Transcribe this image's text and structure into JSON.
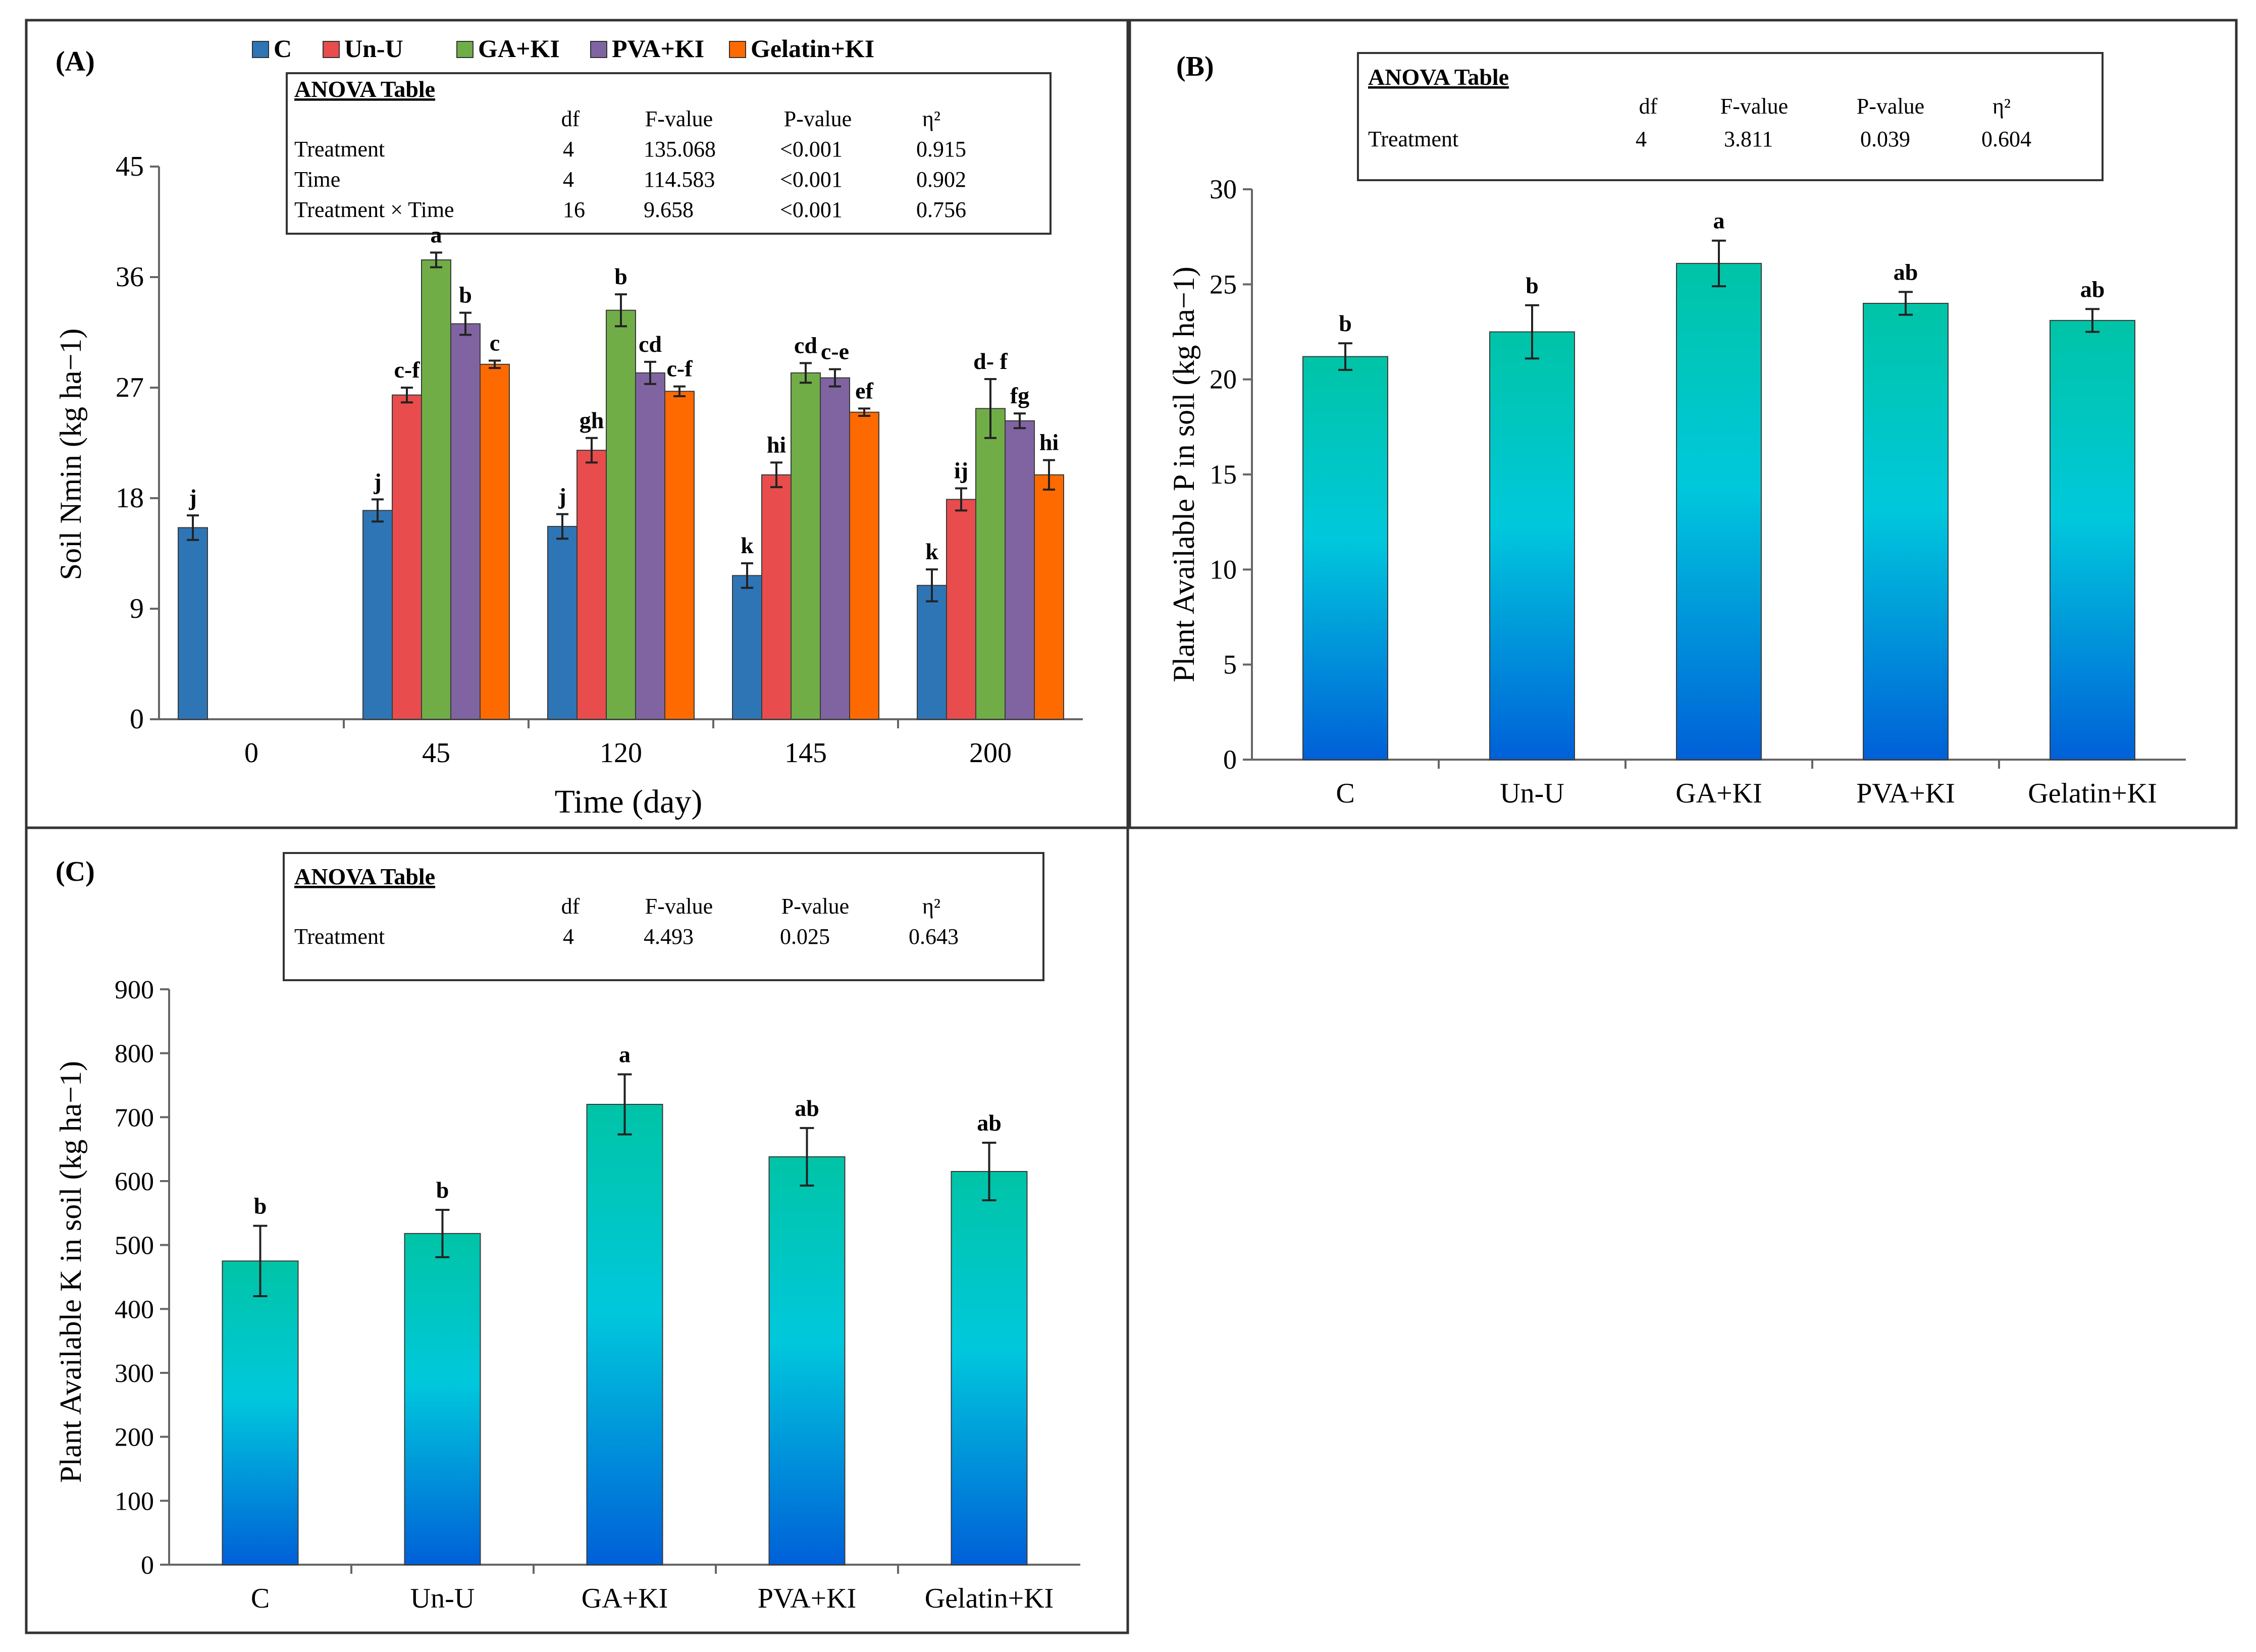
{
  "chart_data": [
    {
      "panel": "(A)",
      "type": "bar",
      "categories": [
        "0",
        "45",
        "120",
        "145",
        "200"
      ],
      "series": [
        {
          "name": "C",
          "color": "#2E75B6",
          "values": [
            15.6,
            17.0,
            15.7,
            11.7,
            10.9
          ],
          "errors": [
            1.0,
            0.9,
            1.0,
            1.0,
            1.3
          ],
          "letters": [
            "j",
            "j",
            "j",
            "k",
            "k"
          ]
        },
        {
          "name": "Un-U",
          "color": "#E84C4C",
          "values": [
            null,
            26.4,
            21.9,
            19.9,
            17.9
          ],
          "errors": [
            null,
            0.6,
            1.0,
            1.0,
            0.9
          ],
          "letters": [
            null,
            "c-f",
            "gh",
            "hi",
            "ij"
          ]
        },
        {
          "name": "GA+KI",
          "color": "#70AD47",
          "values": [
            null,
            37.4,
            33.3,
            28.2,
            25.3
          ],
          "errors": [
            null,
            0.6,
            1.3,
            0.8,
            2.4
          ],
          "letters": [
            null,
            "a",
            "b",
            "cd",
            "d- f"
          ]
        },
        {
          "name": "PVA+KI",
          "color": "#8064A2",
          "values": [
            null,
            32.2,
            28.2,
            27.8,
            24.3
          ],
          "errors": [
            null,
            0.9,
            0.9,
            0.7,
            0.6
          ],
          "letters": [
            null,
            "b",
            "cd",
            "c-e",
            "fg"
          ]
        },
        {
          "name": "Gelatin+KI",
          "color": "#FF6A00",
          "values": [
            null,
            28.9,
            26.7,
            25.0,
            19.9
          ],
          "errors": [
            null,
            0.3,
            0.4,
            0.3,
            1.2
          ],
          "letters": [
            null,
            "c",
            "c-f",
            "ef",
            "hi"
          ]
        }
      ],
      "yticks": [
        "0",
        "9",
        "18",
        "27",
        "36",
        "45"
      ],
      "ylim": [
        0,
        45
      ],
      "xlabel": "Time (day)",
      "ylabel": "Soil Nmin (kg ha−1)",
      "anova": {
        "title": "ANOVA Table",
        "headers": [
          "df",
          "F-value",
          "P-value",
          "η²"
        ],
        "rows": [
          {
            "name": "Treatment",
            "cells": [
              "4",
              "135.068",
              "<0.001",
              "0.915"
            ]
          },
          {
            "name": "Time",
            "cells": [
              "4",
              "114.583",
              "<0.001",
              "0.902"
            ]
          },
          {
            "name": "Treatment × Time",
            "cells": [
              "16",
              "9.658",
              "<0.001",
              "0.756"
            ]
          }
        ]
      }
    },
    {
      "panel": "(B)",
      "type": "bar",
      "categories": [
        "C",
        "Un-U",
        "GA+KI",
        "PVA+KI",
        "Gelatin+KI"
      ],
      "values": [
        21.2,
        22.5,
        26.1,
        24.0,
        23.1
      ],
      "errors": [
        0.7,
        1.4,
        1.2,
        0.6,
        0.6
      ],
      "letters": [
        "b",
        "b",
        "a",
        "ab",
        "ab"
      ],
      "yticks": [
        "0",
        "5",
        "10",
        "15",
        "20",
        "25",
        "30"
      ],
      "ylim": [
        0,
        30
      ],
      "xlabel": "",
      "ylabel": "Plant Available P in soil (kg ha−1)",
      "anova": {
        "title": "ANOVA Table",
        "headers": [
          "df",
          "F-value",
          "P-value",
          "η²"
        ],
        "rows": [
          {
            "name": "Treatment",
            "cells": [
              "4",
              "3.811",
              "0.039",
              "0.604"
            ]
          }
        ]
      }
    },
    {
      "panel": "(C)",
      "type": "bar",
      "categories": [
        "C",
        "Un-U",
        "GA+KI",
        "PVA+KI",
        "Gelatin+KI"
      ],
      "values": [
        475,
        518,
        720,
        638,
        615
      ],
      "errors": [
        55,
        37,
        47,
        45,
        45
      ],
      "letters": [
        "b",
        "b",
        "a",
        "ab",
        "ab"
      ],
      "yticks": [
        "0",
        "100",
        "200",
        "300",
        "400",
        "500",
        "600",
        "700",
        "800",
        "900"
      ],
      "ylim": [
        0,
        900
      ],
      "xlabel": "",
      "ylabel": "Plant Available K in soil (kg ha−1)",
      "anova": {
        "title": "ANOVA Table",
        "headers": [
          "df",
          "F-value",
          "P-value",
          "η²"
        ],
        "rows": [
          {
            "name": "Treatment",
            "cells": [
              "4",
              "4.493",
              "0.025",
              "0.643"
            ]
          }
        ]
      }
    }
  ]
}
